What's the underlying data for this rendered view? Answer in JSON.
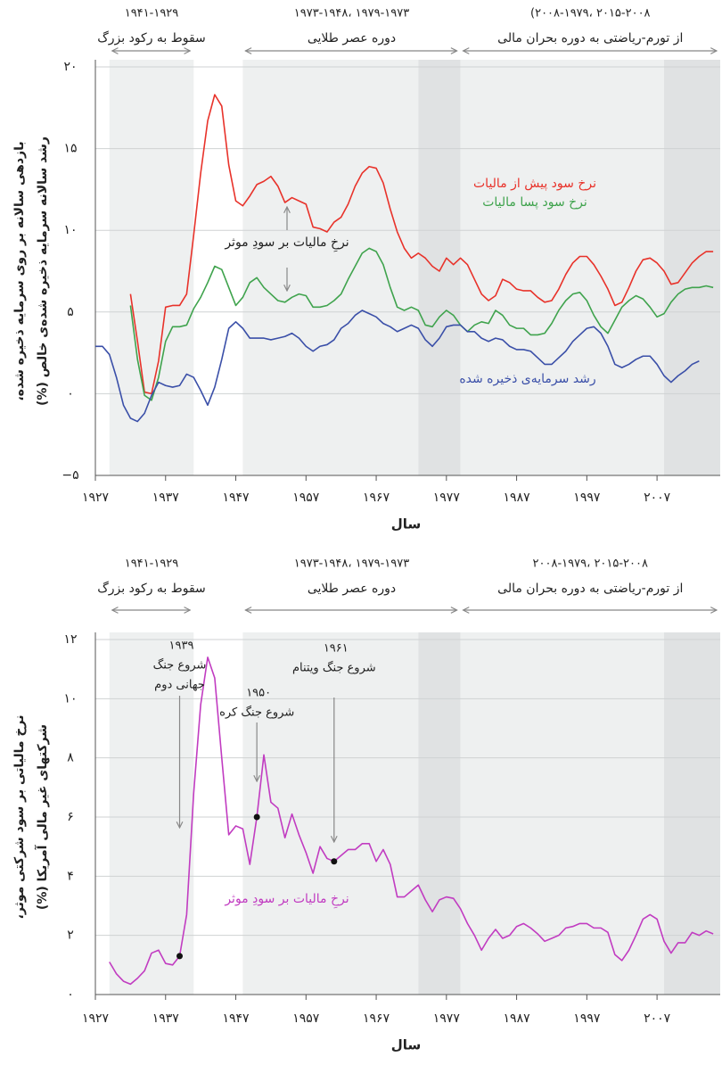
{
  "chart_data": [
    {
      "type": "line",
      "y_label": [
        "بازدهی سالانه بر روی سرمایه ذخیره شده،",
        "رشد سالانه سرمایه ذخیره شده‌ی خالص (%)"
      ],
      "x_label": "سال",
      "periods": [
        {
          "years": "۱۹۴۱-۱۹۲۹",
          "name": "سقوط به رکود بزرگ",
          "start": 1929,
          "end": 1941
        },
        {
          "years": "۱۹۷۹-۱۹۷۳ ،۱۹۷۳-۱۹۴۸",
          "name": "دوره عصر طلایی",
          "start": 1948,
          "end": 1979
        },
        {
          "years": "۲۰۱۵-۲۰۰۸ ،۲۰۰۸-۱۹۷۹)",
          "name": "از تورم-ریاضتی به دوره بحران مالی",
          "start": 1979,
          "end": 2016
        }
      ],
      "shading": [
        {
          "start": 1929,
          "end": 1941,
          "color": "#eef0f0"
        },
        {
          "start": 1948,
          "end": 1973,
          "color": "#eef0f0"
        },
        {
          "start": 1973,
          "end": 1979,
          "color": "#e0e2e3"
        },
        {
          "start": 1979,
          "end": 2008,
          "color": "#eef0f0"
        },
        {
          "start": 2008,
          "end": 2016,
          "color": "#e0e2e3"
        }
      ],
      "annotation": "نرخِ مالیات بر سودِ موثر",
      "x": [
        1927,
        1928,
        1929,
        1930,
        1931,
        1932,
        1933,
        1934,
        1935,
        1936,
        1937,
        1938,
        1939,
        1940,
        1941,
        1942,
        1943,
        1944,
        1945,
        1946,
        1947,
        1948,
        1949,
        1950,
        1951,
        1952,
        1953,
        1954,
        1955,
        1956,
        1957,
        1958,
        1959,
        1960,
        1961,
        1962,
        1963,
        1964,
        1965,
        1966,
        1967,
        1968,
        1969,
        1970,
        1971,
        1972,
        1973,
        1974,
        1975,
        1976,
        1977,
        1978,
        1979,
        1980,
        1981,
        1982,
        1983,
        1984,
        1985,
        1986,
        1987,
        1988,
        1989,
        1990,
        1991,
        1992,
        1993,
        1994,
        1995,
        1996,
        1997,
        1998,
        1999,
        2000,
        2001,
        2002,
        2003,
        2004,
        2005,
        2006,
        2007,
        2008,
        2009,
        2010,
        2011,
        2012,
        2013,
        2014,
        2015
      ],
      "series": [
        {
          "name": "نرخ سود پیش از مالیات",
          "color": "#e8322a",
          "values": [
            null,
            null,
            null,
            null,
            null,
            6.1,
            3.2,
            0.1,
            0,
            2,
            5.3,
            5.4,
            5.4,
            6.1,
            9.7,
            13.5,
            16.7,
            18.3,
            17.6,
            14,
            11.8,
            11.5,
            12.1,
            12.8,
            13,
            13.3,
            12.7,
            11.7,
            12,
            11.8,
            11.6,
            10.2,
            10.1,
            9.9,
            10.5,
            10.8,
            11.6,
            12.7,
            13.5,
            13.9,
            13.8,
            12.9,
            11.3,
            9.9,
            8.9,
            8.3,
            8.6,
            8.3,
            7.8,
            7.5,
            8.3,
            7.9,
            8.3,
            7.9,
            7,
            6.1,
            5.7,
            6,
            7,
            6.8,
            6.4,
            6.3,
            6.3,
            5.9,
            5.6,
            5.7,
            6.4,
            7.3,
            8,
            8.4,
            8.4,
            7.9,
            7.2,
            6.4,
            5.4,
            5.6,
            6.5,
            7.5,
            8.2,
            8.3,
            8,
            7.5,
            6.7,
            6.8,
            7.4,
            8,
            8.4,
            8.7,
            8.7
          ]
        },
        {
          "name": "نرخ سود پسا مالیات",
          "color": "#3fa34d",
          "values": [
            null,
            null,
            null,
            null,
            null,
            5.4,
            2.1,
            -0.1,
            -0.4,
            1,
            3.2,
            4.1,
            4.1,
            4.2,
            5.2,
            5.9,
            6.8,
            7.8,
            7.6,
            6.5,
            5.4,
            5.9,
            6.8,
            7.1,
            6.5,
            6.1,
            5.7,
            5.6,
            5.9,
            6.1,
            6,
            5.3,
            5.3,
            5.4,
            5.7,
            6.1,
            7,
            7.8,
            8.6,
            8.9,
            8.7,
            7.9,
            6.5,
            5.3,
            5.1,
            5.3,
            5.1,
            4.2,
            4.1,
            4.7,
            5.1,
            4.8,
            4.2,
            3.8,
            4.2,
            4.4,
            4.3,
            5.1,
            4.8,
            4.2,
            4,
            4,
            3.6,
            3.6,
            3.7,
            4.3,
            5.1,
            5.7,
            6.1,
            6.2,
            5.7,
            4.8,
            4.1,
            3.7,
            4.5,
            5.3,
            5.7,
            6,
            5.8,
            5.3,
            4.7,
            4.9,
            5.6,
            6.1,
            6.4,
            6.5,
            6.5,
            6.6,
            6.5
          ]
        },
        {
          "name": "رشد سرمایه‌ی ذخیره شده",
          "color": "#3a4fa8",
          "values": [
            2.9,
            2.9,
            2.4,
            1,
            -0.7,
            -1.5,
            -1.7,
            -1.2,
            -0.1,
            0.7,
            0.5,
            0.4,
            0.5,
            1.2,
            1,
            0.2,
            -0.7,
            0.4,
            2.1,
            4,
            4.4,
            4,
            3.4,
            3.4,
            3.4,
            3.3,
            3.4,
            3.5,
            3.7,
            3.4,
            2.9,
            2.6,
            2.9,
            3,
            3.3,
            4,
            4.3,
            4.8,
            5.1,
            4.9,
            4.7,
            4.3,
            4.1,
            3.8,
            4,
            4.2,
            4,
            3.3,
            2.9,
            3.4,
            4.1,
            4.2,
            4.2,
            3.8,
            3.8,
            3.4,
            3.2,
            3.4,
            3.3,
            2.9,
            2.7,
            2.7,
            2.6,
            2.2,
            1.8,
            1.8,
            2.2,
            2.6,
            3.2,
            3.6,
            4,
            4.1,
            3.7,
            2.9,
            1.8,
            1.6,
            1.8,
            2.1,
            2.3,
            2.3,
            1.8,
            1.1,
            0.7,
            1.1,
            1.4,
            1.8,
            2,
            null,
            null
          ]
        }
      ],
      "xlim": [
        1927,
        2016
      ],
      "xticks": [
        {
          "value": 1927,
          "label": "۱۹۲۷"
        },
        {
          "value": 1937,
          "label": "۱۹۳۷"
        },
        {
          "value": 1947,
          "label": "۱۹۴۷"
        },
        {
          "value": 1957,
          "label": "۱۹۵۷"
        },
        {
          "value": 1967,
          "label": "۱۹۶۷"
        },
        {
          "value": 1977,
          "label": "۱۹۷۷"
        },
        {
          "value": 1987,
          "label": "۱۹۸۷"
        },
        {
          "value": 1997,
          "label": "۱۹۹۷"
        },
        {
          "value": 2007,
          "label": "۲۰۰۷"
        }
      ],
      "ylim": [
        -5,
        20
      ],
      "yticks": [
        {
          "value": 20,
          "label": "۲۰"
        },
        {
          "value": 15,
          "label": "۱۵"
        },
        {
          "value": 10,
          "label": "۱۰"
        },
        {
          "value": 5,
          "label": "۵"
        },
        {
          "value": 0,
          "label": "۰"
        },
        {
          "value": -5,
          "label": "−۵"
        }
      ],
      "grid": true
    },
    {
      "type": "line",
      "y_label": [
        "نرخ مالیاتی بر سود شرکتی موثر،",
        "شرکتهای غیر مالی آمریکا (%)"
      ],
      "x_label": "سال",
      "periods": [
        {
          "years": "۱۹۴۱-۱۹۲۹",
          "name": "سقوط به رکود بزرگ",
          "start": 1929,
          "end": 1941
        },
        {
          "years": "۱۹۷۹-۱۹۷۳ ،۱۹۷۳-۱۹۴۸",
          "name": "دوره عصر طلایی",
          "start": 1948,
          "end": 1979
        },
        {
          "years": "۲۰۱۵-۲۰۰۸ ،۲۰۰۸-۱۹۷۹",
          "name": "از تورم-ریاضتی به دوره بحران مالی",
          "start": 1979,
          "end": 2016
        }
      ],
      "shading": [
        {
          "start": 1929,
          "end": 1941,
          "color": "#eef0f0"
        },
        {
          "start": 1948,
          "end": 1973,
          "color": "#eef0f0"
        },
        {
          "start": 1973,
          "end": 1979,
          "color": "#e0e2e3"
        },
        {
          "start": 1979,
          "end": 2008,
          "color": "#eef0f0"
        },
        {
          "start": 2008,
          "end": 2016,
          "color": "#e0e2e3"
        }
      ],
      "events": [
        {
          "year": 1939,
          "year_label": "۱۹۳۹",
          "lines": [
            "شروع جنگ",
            "جهانی دوم"
          ]
        },
        {
          "year": 1950,
          "year_label": "۱۹۵۰",
          "lines": [
            "شروع جنگ کره"
          ]
        },
        {
          "year": 1961,
          "year_label": "۱۹۶۱",
          "lines": [
            "شروع جنگ ویتنام"
          ]
        }
      ],
      "x": [
        1929,
        1930,
        1931,
        1932,
        1933,
        1934,
        1935,
        1936,
        1937,
        1938,
        1939,
        1940,
        1941,
        1942,
        1943,
        1944,
        1945,
        1946,
        1947,
        1948,
        1949,
        1950,
        1951,
        1952,
        1953,
        1954,
        1955,
        1956,
        1957,
        1958,
        1959,
        1960,
        1961,
        1962,
        1963,
        1964,
        1965,
        1966,
        1967,
        1968,
        1969,
        1970,
        1971,
        1972,
        1973,
        1974,
        1975,
        1976,
        1977,
        1978,
        1979,
        1980,
        1981,
        1982,
        1983,
        1984,
        1985,
        1986,
        1987,
        1988,
        1989,
        1990,
        1991,
        1992,
        1993,
        1994,
        1995,
        1996,
        1997,
        1998,
        1999,
        2000,
        2001,
        2002,
        2003,
        2004,
        2005,
        2006,
        2007,
        2008,
        2009,
        2010,
        2011,
        2012,
        2013,
        2014,
        2015
      ],
      "series": [
        {
          "name": "نرخِ مالیات بر سودِ موثر",
          "color": "#c13cc1",
          "values": [
            1.1,
            0.7,
            0.45,
            0.35,
            0.55,
            0.8,
            1.4,
            1.5,
            1.05,
            1.0,
            1.3,
            2.7,
            6.8,
            9.8,
            11.4,
            10.7,
            8,
            5.4,
            5.7,
            5.6,
            4.4,
            6,
            8.1,
            6.5,
            6.3,
            5.3,
            6.1,
            5.4,
            4.8,
            4.1,
            5,
            4.6,
            4.5,
            4.7,
            4.9,
            4.9,
            5.1,
            5.1,
            4.5,
            4.9,
            4.4,
            3.3,
            3.3,
            3.5,
            3.7,
            3.2,
            2.8,
            3.2,
            3.3,
            3.25,
            2.9,
            2.4,
            2,
            1.5,
            1.9,
            2.2,
            1.9,
            2,
            2.3,
            2.4,
            2.25,
            2.05,
            1.8,
            1.9,
            2,
            2.25,
            2.3,
            2.4,
            2.4,
            2.25,
            2.25,
            2.1,
            1.35,
            1.15,
            1.5,
            2,
            2.55,
            2.7,
            2.55,
            1.8,
            1.4,
            1.75,
            1.75,
            2.1,
            2,
            2.15,
            2.05
          ]
        }
      ],
      "xlim": [
        1927,
        2016
      ],
      "xticks": [
        {
          "value": 1927,
          "label": "۱۹۲۷"
        },
        {
          "value": 1937,
          "label": "۱۹۳۷"
        },
        {
          "value": 1947,
          "label": "۱۹۴۷"
        },
        {
          "value": 1957,
          "label": "۱۹۵۷"
        },
        {
          "value": 1967,
          "label": "۱۹۶۷"
        },
        {
          "value": 1977,
          "label": "۱۹۷۷"
        },
        {
          "value": 1987,
          "label": "۱۹۸۷"
        },
        {
          "value": 1997,
          "label": "۱۹۹۷"
        },
        {
          "value": 2007,
          "label": "۲۰۰۷"
        }
      ],
      "ylim": [
        0,
        12
      ],
      "yticks": [
        {
          "value": 0,
          "label": "۰"
        },
        {
          "value": 2,
          "label": "۲"
        },
        {
          "value": 4,
          "label": "۴"
        },
        {
          "value": 6,
          "label": "۶"
        },
        {
          "value": 8,
          "label": "۸"
        },
        {
          "value": 10,
          "label": "۱۰"
        },
        {
          "value": 12,
          "label": "۱۲"
        }
      ],
      "grid": true
    }
  ]
}
